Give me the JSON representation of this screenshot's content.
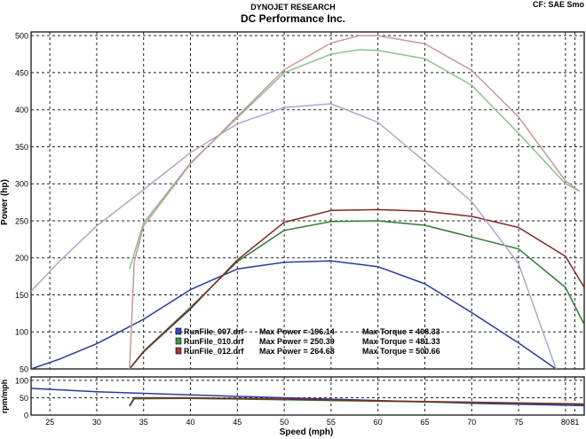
{
  "header": {
    "title": "DYNOJET RESEARCH",
    "subtitle": "DC Performance Inc.",
    "correction": "CF: SAE  Smo"
  },
  "chart_data": {
    "type": "line",
    "xlabel": "Speed (mph)",
    "xlim": [
      23,
      82
    ],
    "x_ticks": [
      25,
      30,
      35,
      40,
      45,
      50,
      55,
      60,
      65,
      70,
      75,
      80,
      81
    ],
    "grid": true,
    "main": {
      "ylabel": "Power (hp)",
      "ylim": [
        50,
        505
      ],
      "y_ticks": [
        50,
        100,
        150,
        200,
        250,
        300,
        350,
        400,
        450,
        500
      ],
      "series": [
        {
          "file": "RunFile_007.drf",
          "quantity": "power",
          "color": "#2a3a9a",
          "x": [
            23,
            26,
            30,
            35,
            40,
            45,
            50,
            55,
            60,
            65,
            70,
            75,
            79
          ],
          "y": [
            50,
            63,
            84,
            117,
            157,
            185,
            194,
            196,
            188,
            165,
            126,
            85,
            50
          ]
        },
        {
          "file": "RunFile_010.drf",
          "quantity": "power",
          "color": "#2f7a35",
          "x": [
            33.5,
            35,
            40,
            45,
            50,
            55,
            60,
            65,
            70,
            75,
            80,
            82
          ],
          "y": [
            50,
            74,
            133,
            195,
            237,
            249,
            250,
            244,
            228,
            212,
            160,
            110
          ]
        },
        {
          "file": "RunFile_012.drf",
          "quantity": "power",
          "color": "#7a2a28",
          "x": [
            33.5,
            35,
            40,
            45,
            50,
            55,
            60,
            65,
            70,
            75,
            80,
            82
          ],
          "y": [
            50,
            73,
            131,
            197,
            248,
            264,
            265,
            263,
            256,
            241,
            202,
            160
          ]
        },
        {
          "file": "RunFile_007.drf",
          "quantity": "torque",
          "color": "#b0a8c8",
          "x": [
            23,
            26,
            30,
            35,
            40,
            45,
            50,
            55,
            60,
            65,
            70,
            75,
            79
          ],
          "y": [
            155,
            195,
            243,
            292,
            342,
            381,
            403,
            408,
            383,
            330,
            276,
            192,
            50
          ]
        },
        {
          "file": "RunFile_010.drf",
          "quantity": "torque",
          "color": "#8fbf8f",
          "x": [
            33.5,
            35,
            40,
            45,
            50,
            55,
            58,
            60,
            65,
            70,
            75,
            80,
            81.5
          ],
          "y": [
            185,
            247,
            328,
            389,
            450,
            475,
            481,
            480,
            469,
            433,
            368,
            300,
            290
          ]
        },
        {
          "file": "RunFile_012.drf",
          "quantity": "torque",
          "color": "#c49a9a",
          "x": [
            33.5,
            34,
            35,
            40,
            45,
            50,
            55,
            58,
            60,
            65,
            70,
            75,
            80,
            81.5
          ],
          "y": [
            50,
            195,
            243,
            327,
            391,
            454,
            490,
            500,
            500,
            489,
            453,
            390,
            304,
            290
          ]
        }
      ],
      "legend_placement": "bottom-center",
      "legend": [
        {
          "file": "RunFile_007.drf",
          "power_label": "Max Power = 196.14",
          "torque_label": "Max Torque = 408.33",
          "color": "#3a4ab0"
        },
        {
          "file": "RunFile_010.drf",
          "power_label": "Max Power = 250.39",
          "torque_label": "Max Torque = 481.33",
          "color": "#3a9a45"
        },
        {
          "file": "RunFile_012.drf",
          "power_label": "Max Power = 264.68",
          "torque_label": "Max Torque = 500.66",
          "color": "#a03a35"
        }
      ]
    },
    "sub": {
      "ylabel": "rpm/mph",
      "ylim": [
        0,
        110
      ],
      "y_ticks": [
        0,
        50,
        100
      ],
      "series": [
        {
          "file": "RunFile_007.drf",
          "color": "#2a3a9a",
          "x": [
            23,
            30,
            40,
            50,
            60,
            70,
            82
          ],
          "y": [
            77,
            67,
            58,
            50,
            42,
            34,
            27
          ]
        },
        {
          "file": "RunFile_010.drf",
          "color": "#2f7a35",
          "x": [
            33.5,
            34,
            40,
            50,
            60,
            70,
            82
          ],
          "y": [
            25,
            47,
            48,
            44,
            40,
            36,
            31
          ]
        },
        {
          "file": "RunFile_012.drf",
          "color": "#7a2a28",
          "x": [
            33.5,
            34,
            40,
            50,
            60,
            70,
            82
          ],
          "y": [
            27,
            50,
            50,
            46,
            41,
            37,
            32
          ]
        }
      ]
    }
  }
}
